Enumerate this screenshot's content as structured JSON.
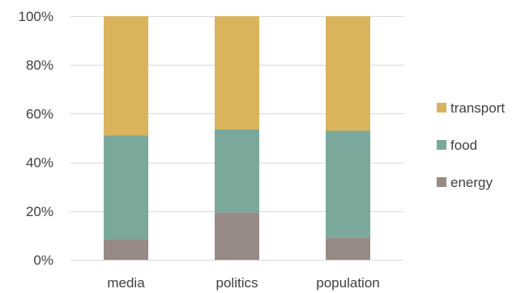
{
  "chart_data": {
    "type": "bar",
    "stacked": true,
    "percent": true,
    "categories": [
      "media",
      "politics",
      "population"
    ],
    "series": [
      {
        "name": "energy",
        "values": [
          8.5,
          19.5,
          9.0
        ],
        "color": "#978a85"
      },
      {
        "name": "food",
        "values": [
          42.5,
          34.0,
          44.0
        ],
        "color": "#7aa89b"
      },
      {
        "name": "transport",
        "values": [
          49.0,
          46.5,
          47.0
        ],
        "color": "#d9b45c"
      }
    ],
    "ylim": [
      0,
      100
    ],
    "yticks": [
      "0%",
      "20%",
      "40%",
      "60%",
      "80%",
      "100%"
    ],
    "ytick_values": [
      0,
      20,
      40,
      60,
      80,
      100
    ],
    "grid": true,
    "legend": {
      "position": "right",
      "order": [
        "transport",
        "food",
        "energy"
      ]
    },
    "title": "",
    "xlabel": "",
    "ylabel": ""
  }
}
